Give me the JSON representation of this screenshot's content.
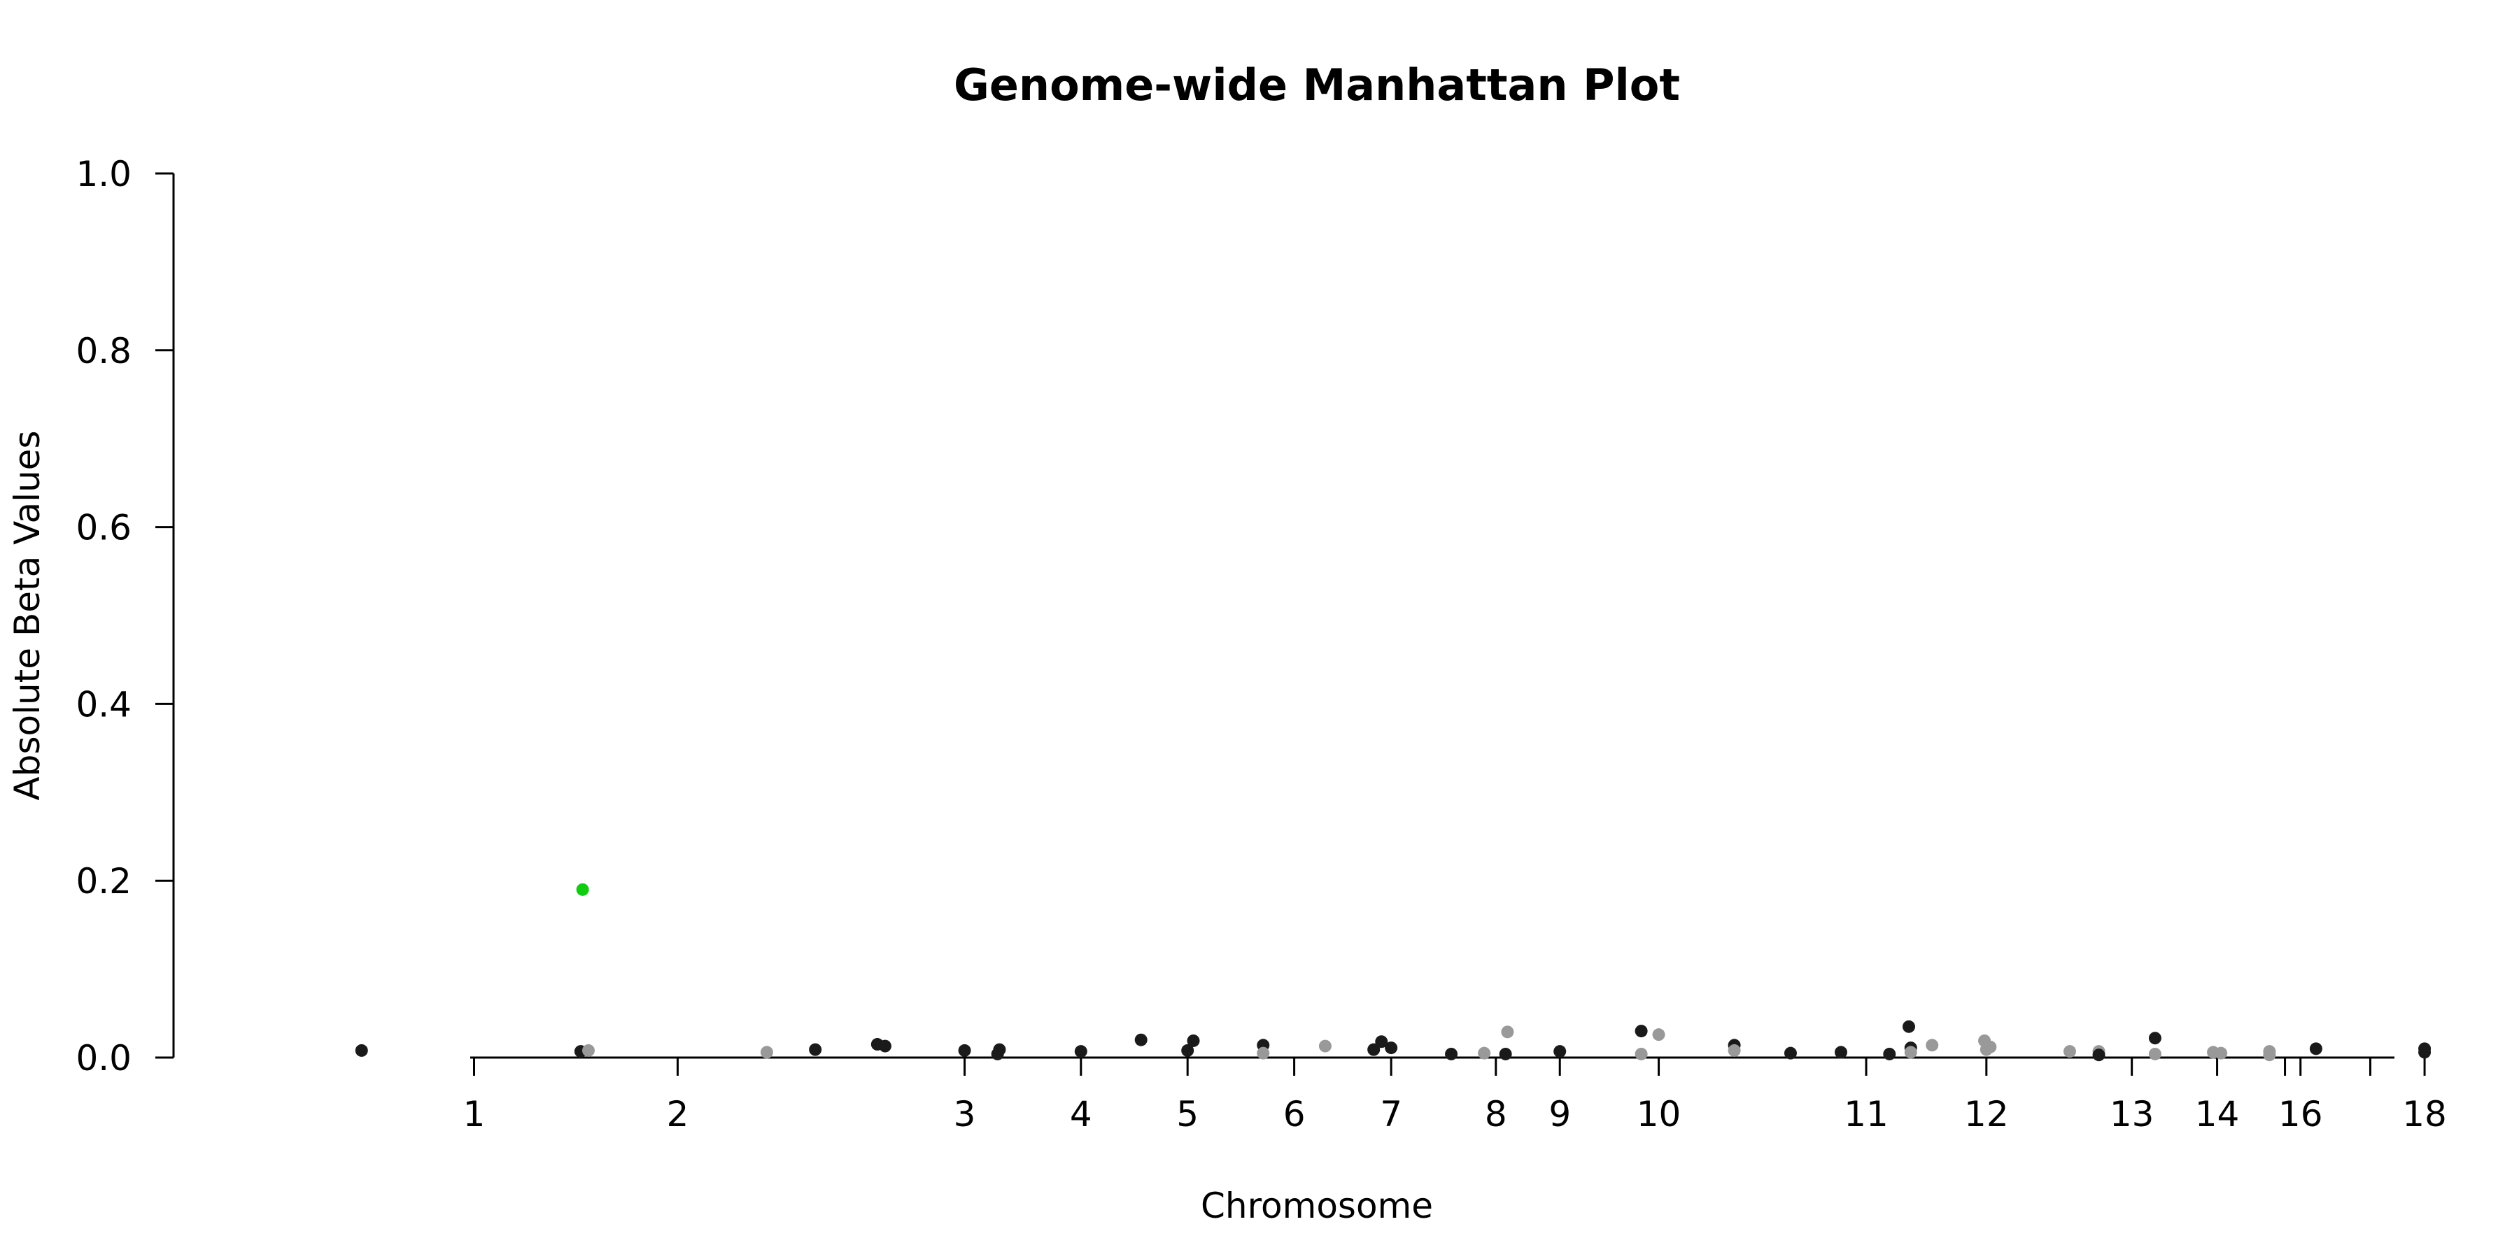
{
  "chart_data": {
    "type": "scatter",
    "title": "Genome-wide Manhattan Plot",
    "xlabel": "Chromosome",
    "ylabel": "Absolute Beta Values",
    "ylim": [
      0,
      1.0
    ],
    "yticks": [
      "0.0",
      "0.2",
      "0.4",
      "0.6",
      "0.8",
      "1.0"
    ],
    "xticks": [
      {
        "label": "1",
        "x": 0.155
      },
      {
        "label": "2",
        "x": 0.26
      },
      {
        "label": "3",
        "x": 0.408
      },
      {
        "label": "4",
        "x": 0.468
      },
      {
        "label": "5",
        "x": 0.523
      },
      {
        "label": "6",
        "x": 0.578
      },
      {
        "label": "7",
        "x": 0.628
      },
      {
        "label": "8",
        "x": 0.682
      },
      {
        "label": "9",
        "x": 0.715
      },
      {
        "label": "10",
        "x": 0.766
      },
      {
        "label": "11",
        "x": 0.873
      },
      {
        "label": "12",
        "x": 0.935
      },
      {
        "label": "13",
        "x": 1.01
      },
      {
        "label": "14",
        "x": 1.054
      },
      {
        "label": "",
        "x": 1.089
      },
      {
        "label": "16",
        "x": 1.097
      },
      {
        "label": "",
        "x": 1.133
      },
      {
        "label": "18",
        "x": 1.161
      }
    ],
    "xlim": [
      0,
      1.17
    ],
    "grid": false,
    "colors": {
      "dark": "#1a1a1a",
      "light": "#999999",
      "highlight": "#11cc11"
    },
    "points": [
      {
        "x": 0.097,
        "y": 0.008,
        "c": "dark"
      },
      {
        "x": 0.211,
        "y": 0.19,
        "c": "highlight"
      },
      {
        "x": 0.21,
        "y": 0.007,
        "c": "dark"
      },
      {
        "x": 0.214,
        "y": 0.008,
        "c": "light"
      },
      {
        "x": 0.306,
        "y": 0.006,
        "c": "light"
      },
      {
        "x": 0.331,
        "y": 0.009,
        "c": "dark"
      },
      {
        "x": 0.363,
        "y": 0.015,
        "c": "dark"
      },
      {
        "x": 0.367,
        "y": 0.013,
        "c": "dark"
      },
      {
        "x": 0.408,
        "y": 0.008,
        "c": "dark"
      },
      {
        "x": 0.426,
        "y": 0.009,
        "c": "dark"
      },
      {
        "x": 0.425,
        "y": 0.004,
        "c": "dark"
      },
      {
        "x": 0.468,
        "y": 0.007,
        "c": "dark"
      },
      {
        "x": 0.499,
        "y": 0.02,
        "c": "dark"
      },
      {
        "x": 0.523,
        "y": 0.008,
        "c": "dark"
      },
      {
        "x": 0.526,
        "y": 0.019,
        "c": "dark"
      },
      {
        "x": 0.562,
        "y": 0.014,
        "c": "dark"
      },
      {
        "x": 0.562,
        "y": 0.005,
        "c": "light"
      },
      {
        "x": 0.594,
        "y": 0.013,
        "c": "light"
      },
      {
        "x": 0.619,
        "y": 0.009,
        "c": "dark"
      },
      {
        "x": 0.623,
        "y": 0.018,
        "c": "dark"
      },
      {
        "x": 0.628,
        "y": 0.011,
        "c": "dark"
      },
      {
        "x": 0.659,
        "y": 0.004,
        "c": "dark"
      },
      {
        "x": 0.676,
        "y": 0.005,
        "c": "light"
      },
      {
        "x": 0.688,
        "y": 0.029,
        "c": "light"
      },
      {
        "x": 0.687,
        "y": 0.004,
        "c": "dark"
      },
      {
        "x": 0.715,
        "y": 0.007,
        "c": "dark"
      },
      {
        "x": 0.757,
        "y": 0.03,
        "c": "dark"
      },
      {
        "x": 0.757,
        "y": 0.004,
        "c": "light"
      },
      {
        "x": 0.766,
        "y": 0.026,
        "c": "light"
      },
      {
        "x": 0.805,
        "y": 0.014,
        "c": "dark"
      },
      {
        "x": 0.805,
        "y": 0.008,
        "c": "light"
      },
      {
        "x": 0.834,
        "y": 0.005,
        "c": "dark"
      },
      {
        "x": 0.86,
        "y": 0.006,
        "c": "dark"
      },
      {
        "x": 0.885,
        "y": 0.004,
        "c": "dark"
      },
      {
        "x": 0.895,
        "y": 0.035,
        "c": "dark"
      },
      {
        "x": 0.896,
        "y": 0.011,
        "c": "dark"
      },
      {
        "x": 0.896,
        "y": 0.006,
        "c": "light"
      },
      {
        "x": 0.907,
        "y": 0.014,
        "c": "light"
      },
      {
        "x": 0.934,
        "y": 0.019,
        "c": "light"
      },
      {
        "x": 0.935,
        "y": 0.009,
        "c": "light"
      },
      {
        "x": 0.937,
        "y": 0.012,
        "c": "light"
      },
      {
        "x": 0.978,
        "y": 0.007,
        "c": "light"
      },
      {
        "x": 0.993,
        "y": 0.007,
        "c": "light"
      },
      {
        "x": 0.993,
        "y": 0.003,
        "c": "dark"
      },
      {
        "x": 1.022,
        "y": 0.022,
        "c": "dark"
      },
      {
        "x": 1.022,
        "y": 0.004,
        "c": "light"
      },
      {
        "x": 1.052,
        "y": 0.006,
        "c": "light"
      },
      {
        "x": 1.056,
        "y": 0.005,
        "c": "light"
      },
      {
        "x": 1.081,
        "y": 0.007,
        "c": "light"
      },
      {
        "x": 1.081,
        "y": 0.003,
        "c": "light"
      },
      {
        "x": 1.105,
        "y": 0.01,
        "c": "dark"
      },
      {
        "x": 1.161,
        "y": 0.01,
        "c": "dark"
      },
      {
        "x": 1.161,
        "y": 0.006,
        "c": "dark"
      }
    ]
  }
}
